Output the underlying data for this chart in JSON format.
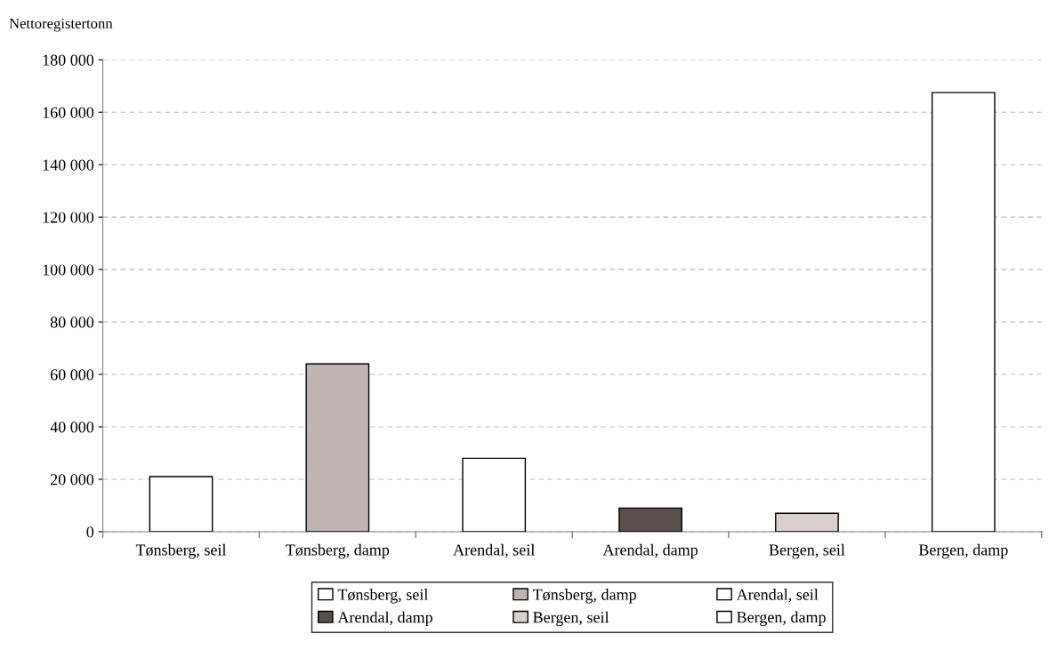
{
  "chart_data": {
    "type": "bar",
    "ylabel": "Nettoregistertonn",
    "categories": [
      "Tønsberg, seil",
      "Tønsberg, damp",
      "Arendal, seil",
      "Arendal, damp",
      "Bergen, seil",
      "Bergen, damp"
    ],
    "series": [
      {
        "name": "Tønsberg, seil",
        "color": "#ffffff",
        "values": [
          21000,
          null,
          null,
          null,
          null,
          null
        ]
      },
      {
        "name": "Tønsberg, damp",
        "color": "#beb4b2",
        "values": [
          null,
          64000,
          null,
          null,
          null,
          null
        ]
      },
      {
        "name": "Arendal, seil",
        "color": "#ffffff",
        "values": [
          null,
          null,
          28000,
          null,
          null,
          null
        ]
      },
      {
        "name": "Arendal, damp",
        "color": "#594f4d",
        "values": [
          null,
          null,
          null,
          9000,
          null,
          null
        ]
      },
      {
        "name": "Bergen, seil",
        "color": "#d9d0ce",
        "values": [
          null,
          null,
          null,
          null,
          7000,
          null
        ]
      },
      {
        "name": "Bergen, damp",
        "color": "#ffffff",
        "values": [
          null,
          null,
          null,
          null,
          null,
          167500
        ]
      }
    ],
    "ylim": [
      0,
      180000
    ],
    "yticks": [
      {
        "value": 0,
        "label": "0"
      },
      {
        "value": 20000,
        "label": "20 000"
      },
      {
        "value": 40000,
        "label": "40 000"
      },
      {
        "value": 60000,
        "label": "60 000"
      },
      {
        "value": 80000,
        "label": "80 000"
      },
      {
        "value": 100000,
        "label": "100 000"
      },
      {
        "value": 120000,
        "label": "120 000"
      },
      {
        "value": 140000,
        "label": "140 000"
      },
      {
        "value": 160000,
        "label": "160 000"
      },
      {
        "value": 180000,
        "label": "180 000"
      }
    ],
    "grid": "y",
    "legend": "bottom"
  }
}
